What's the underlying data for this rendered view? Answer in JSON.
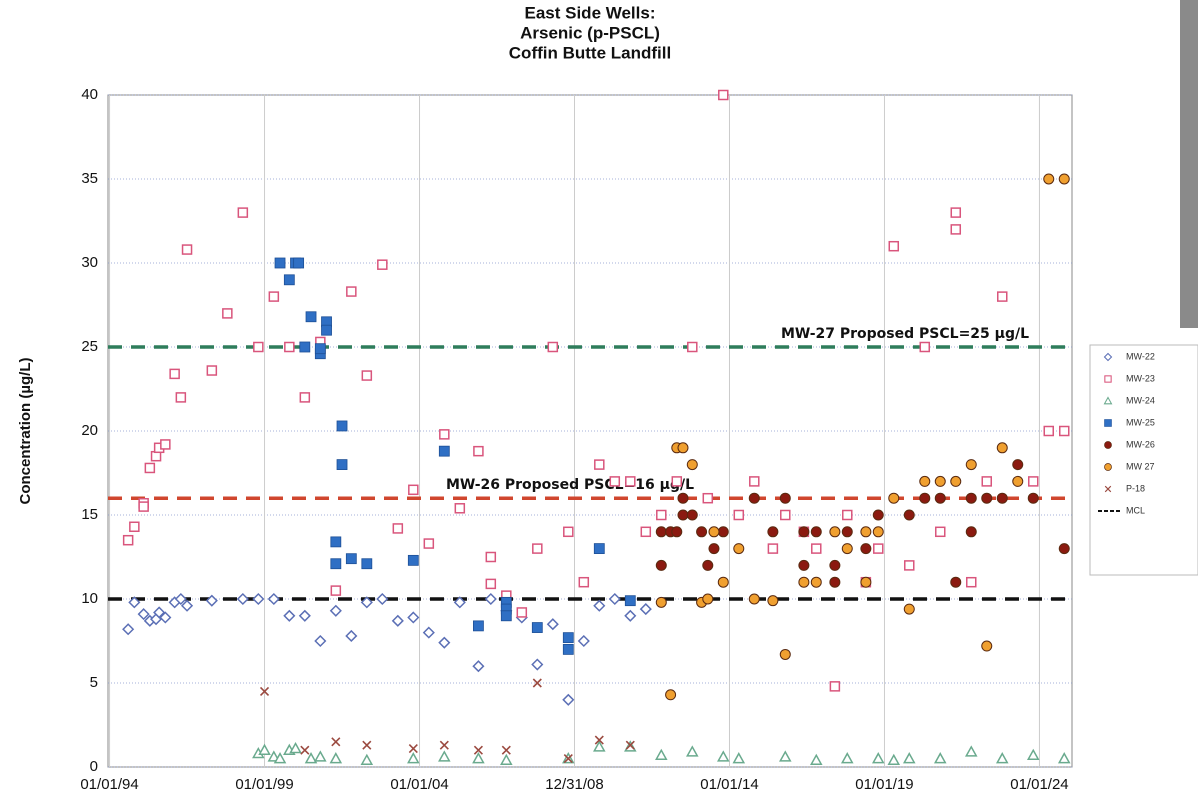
{
  "chart_data": {
    "type": "scatter",
    "title": [
      "East Side Wells:",
      "Arsenic (p-PSCL)",
      "Coffin Butte Landfill"
    ],
    "y_label": "Concentration (µg/L)",
    "xlim": [
      1993.95,
      2025.05
    ],
    "xticks": [
      {
        "value": 1994,
        "label": "01/01/94"
      },
      {
        "value": 1999,
        "label": "01/01/99"
      },
      {
        "value": 2004,
        "label": "01/01/04"
      },
      {
        "value": 2009,
        "label": "12/31/08"
      },
      {
        "value": 2014,
        "label": "01/01/14"
      },
      {
        "value": 2019,
        "label": "01/01/19"
      },
      {
        "value": 2024,
        "label": "01/01/24"
      }
    ],
    "ylim": [
      0,
      40
    ],
    "yticks": [
      0,
      5,
      10,
      15,
      20,
      25,
      30,
      35,
      40
    ],
    "grid": true,
    "legend": "right",
    "series": [
      {
        "name": "MW-22",
        "color": "#5b6fb5",
        "marker": "diamond-open",
        "x": [
          1994.6,
          1994.8,
          1995.1,
          1995.3,
          1995.5,
          1995.6,
          1995.8,
          1996.1,
          1996.3,
          1996.5,
          1997.3,
          1998.3,
          1998.8,
          1999.3,
          1999.8,
          2000.3,
          2000.8,
          2001.3,
          2001.8,
          2002.3,
          2002.8,
          2003.3,
          2003.8,
          2004.3,
          2004.8,
          2005.3,
          2005.9,
          2006.3,
          2006.8,
          2007.3,
          2007.8,
          2008.3,
          2008.8,
          2009.3,
          2009.8,
          2010.3,
          2010.8,
          2011.3
        ],
        "values": [
          8.2,
          9.8,
          9.1,
          8.7,
          8.8,
          9.2,
          8.9,
          9.8,
          10,
          9.6,
          9.9,
          10,
          10,
          10,
          9,
          9,
          7.5,
          9.3,
          7.8,
          9.8,
          10,
          8.7,
          8.9,
          8,
          7.4,
          9.8,
          6,
          10,
          9.3,
          8.9,
          6.1,
          8.5,
          4,
          7.5,
          9.6,
          10,
          9,
          9.4
        ]
      },
      {
        "name": "MW-23",
        "color": "#d9557c",
        "marker": "square-open",
        "x": [
          1994.6,
          1994.8,
          1995.1,
          1995.1,
          1995.3,
          1995.5,
          1995.6,
          1995.8,
          1996.1,
          1996.3,
          1996.5,
          1997.3,
          1997.8,
          1998.3,
          1998.8,
          1999.3,
          1999.8,
          2000.3,
          2000.8,
          2000.8,
          2001.3,
          2001.8,
          2002.3,
          2002.8,
          2003.3,
          2003.8,
          2004.3,
          2004.8,
          2005.3,
          2005.9,
          2006.3,
          2006.3,
          2006.8,
          2007.3,
          2007.8,
          2008.3,
          2008.8,
          2009.3,
          2009.8,
          2010.3,
          2010.8,
          2011.3,
          2011.8,
          2012.3,
          2012.8,
          2013.3,
          2013.8,
          2014.3,
          2014.8,
          2015.4,
          2015.8,
          2016.4,
          2016.8,
          2017.4,
          2017.8,
          2018.4,
          2018.8,
          2019.3,
          2019.8,
          2020.3,
          2020.8,
          2021.3,
          2021.3,
          2021.8,
          2022.3,
          2022.8,
          2023.8,
          2024.3,
          2024.8
        ],
        "values": [
          13.5,
          14.3,
          15.7,
          15.5,
          17.8,
          18.5,
          19,
          19.2,
          23.4,
          22,
          30.8,
          23.6,
          27,
          33,
          25,
          28,
          25,
          22,
          25.3,
          24.9,
          10.5,
          28.3,
          23.3,
          29.9,
          14.2,
          16.5,
          13.3,
          19.8,
          15.4,
          18.8,
          12.5,
          10.9,
          10.2,
          9.2,
          13,
          25,
          14,
          11,
          18,
          17,
          17,
          14,
          15,
          17,
          25,
          16,
          40,
          15,
          17,
          13,
          15,
          14,
          13,
          4.8,
          15,
          11,
          13,
          31,
          12,
          25,
          14,
          33,
          32,
          11,
          17,
          28,
          17,
          20,
          20
        ]
      },
      {
        "name": "MW-24",
        "color": "#6aaa8e",
        "marker": "triangle-open",
        "x": [
          1998.8,
          1999.0,
          1999.3,
          1999.5,
          1999.8,
          2000.0,
          2000.5,
          2000.8,
          2001.3,
          2002.3,
          2003.8,
          2004.8,
          2005.9,
          2006.8,
          2008.8,
          2009.8,
          2010.8,
          2011.8,
          2012.8,
          2013.8,
          2014.3,
          2015.8,
          2016.8,
          2017.8,
          2018.8,
          2019.3,
          2019.8,
          2020.8,
          2021.8,
          2022.8,
          2023.8,
          2024.8
        ],
        "values": [
          0.8,
          1,
          0.6,
          0.5,
          1,
          1.1,
          0.5,
          0.6,
          0.5,
          0.4,
          0.5,
          0.6,
          0.5,
          0.4,
          0.5,
          1.2,
          1.2,
          0.7,
          0.9,
          0.6,
          0.5,
          0.6,
          0.4,
          0.5,
          0.5,
          0.4,
          0.5,
          0.5,
          0.9,
          0.5,
          0.7,
          0.5
        ]
      },
      {
        "name": "MW-25",
        "color": "#2f6fc4",
        "marker": "square",
        "x": [
          1999.5,
          1999.8,
          2000.0,
          2000.1,
          2000.3,
          2000.5,
          2000.8,
          2000.8,
          2001.0,
          2001.0,
          2001.5,
          2001.5,
          2001.3,
          2001.3,
          2001.8,
          2002.3,
          2003.8,
          2004.8,
          2005.9,
          2006.8,
          2006.8,
          2006.8,
          2007.8,
          2008.8,
          2008.8,
          2009.8,
          2010.8
        ],
        "values": [
          30,
          29,
          30,
          30,
          25,
          26.8,
          24.6,
          24.9,
          26.5,
          26,
          20.3,
          18,
          13.4,
          12.1,
          12.4,
          12.1,
          12.3,
          18.8,
          8.4,
          9.8,
          9.4,
          9,
          8.3,
          7.7,
          7,
          13,
          9.9
        ]
      },
      {
        "name": "MW-26",
        "color": "#8b1a10",
        "marker": "circle",
        "x": [
          2011.8,
          2011.8,
          2012.1,
          2012.3,
          2012.5,
          2012.5,
          2012.8,
          2013.1,
          2013.3,
          2013.5,
          2013.8,
          2014.8,
          2015.4,
          2015.8,
          2016.4,
          2016.4,
          2016.8,
          2017.4,
          2017.4,
          2017.8,
          2018.4,
          2018.8,
          2019.8,
          2020.3,
          2020.8,
          2021.3,
          2021.8,
          2021.8,
          2022.3,
          2022.8,
          2023.3,
          2023.8,
          2024.8
        ],
        "values": [
          12,
          14,
          14,
          14,
          16,
          15,
          15,
          14,
          12,
          13,
          14,
          16,
          14,
          16,
          12,
          14,
          14,
          12,
          11,
          14,
          13,
          15,
          15,
          16,
          16,
          11,
          14,
          16,
          16,
          16,
          18,
          16,
          13
        ]
      },
      {
        "name": "MW 27",
        "color": "#f0a030",
        "marker": "circle",
        "x": [
          2011.8,
          2012.1,
          2012.3,
          2012.5,
          2012.8,
          2013.1,
          2013.3,
          2013.5,
          2013.8,
          2014.3,
          2014.8,
          2015.4,
          2015.8,
          2016.4,
          2016.8,
          2017.4,
          2017.8,
          2018.4,
          2018.4,
          2018.8,
          2019.3,
          2019.8,
          2020.3,
          2020.8,
          2021.3,
          2021.8,
          2022.3,
          2022.8,
          2023.3,
          2024.3,
          2024.8
        ],
        "values": [
          9.8,
          4.3,
          19,
          19,
          18,
          9.8,
          10,
          14,
          11,
          13,
          10,
          9.9,
          6.7,
          11,
          11,
          14,
          13,
          14,
          11,
          14,
          16,
          9.4,
          17,
          17,
          17,
          18,
          7.2,
          19,
          17,
          35,
          35
        ]
      },
      {
        "name": "P-18",
        "color": "#9b4a40",
        "marker": "x",
        "x": [
          1999.0,
          2000.3,
          2001.3,
          2002.3,
          2003.8,
          2004.8,
          2005.9,
          2006.8,
          2007.8,
          2008.8,
          2009.8,
          2010.8
        ],
        "values": [
          4.5,
          1,
          1.5,
          1.3,
          1.1,
          1.3,
          1,
          1,
          5,
          0.5,
          1.6,
          1.3
        ]
      }
    ],
    "lines": [
      {
        "label": "MW-27 Proposed PSCL=25 µg/L",
        "value": 25,
        "color": "#2e7d5b"
      },
      {
        "label": "MW-26 Proposed PSCL=16 µg/L",
        "value": 16,
        "color": "#d0462e"
      },
      {
        "name": "MCL",
        "value": 10,
        "color": "#111111"
      }
    ]
  }
}
